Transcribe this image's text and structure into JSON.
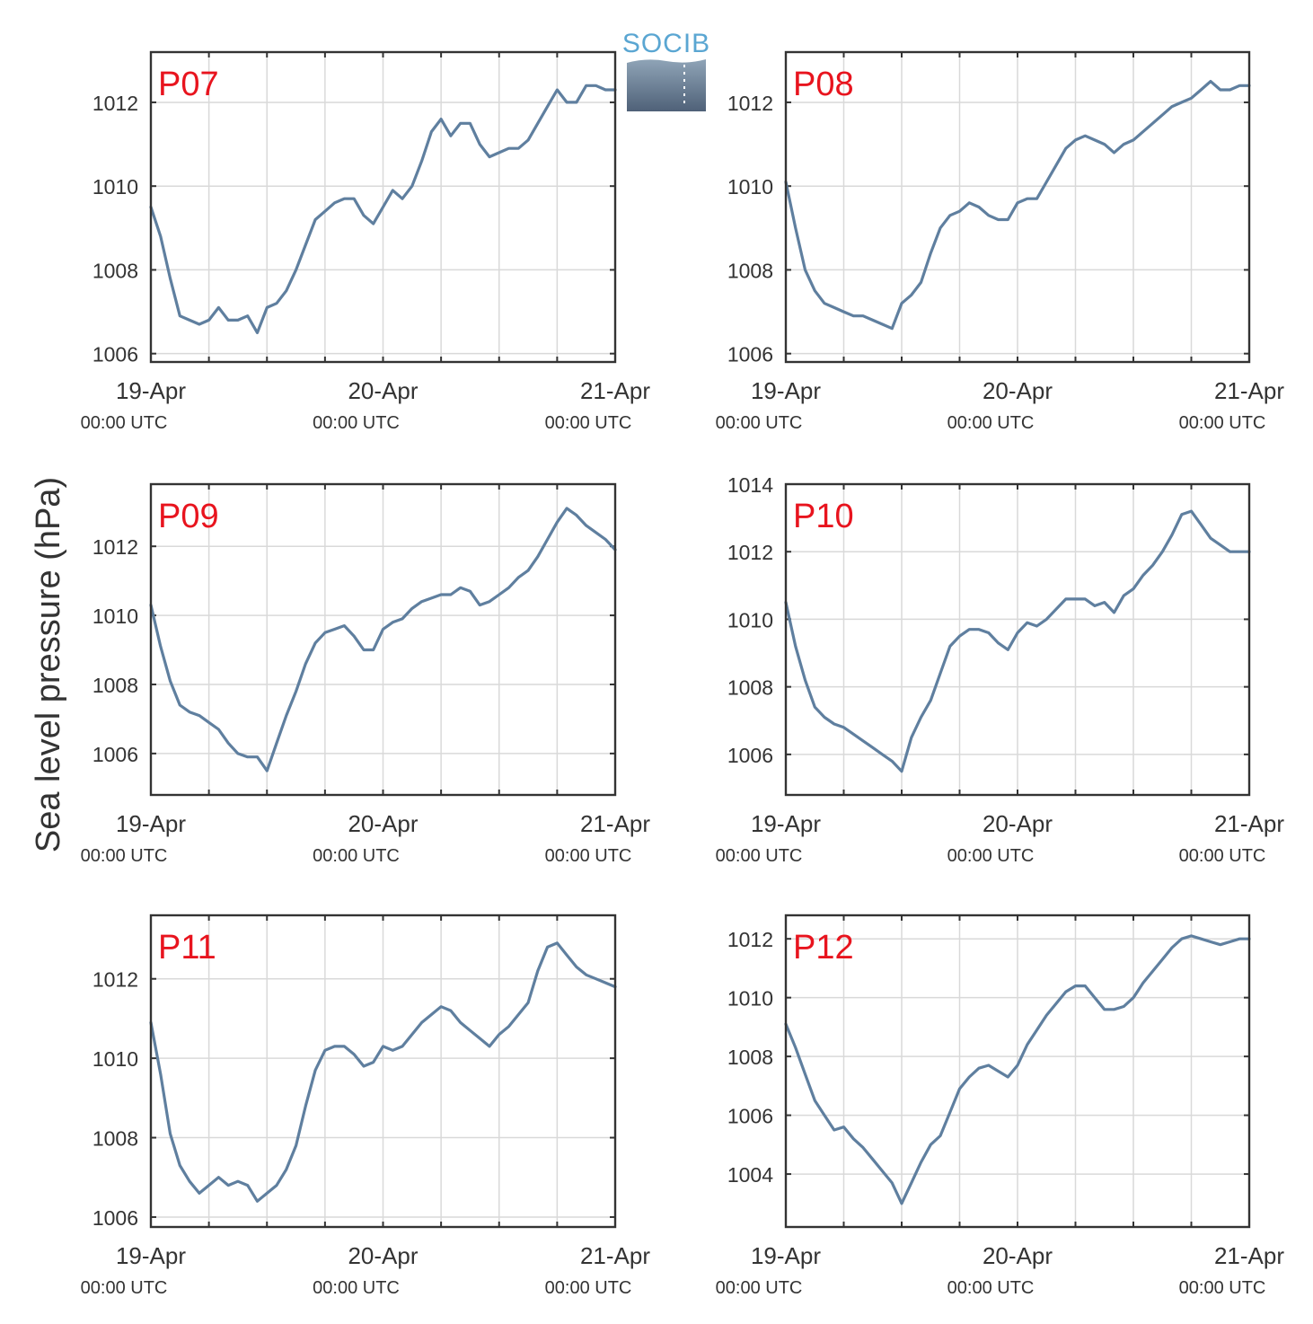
{
  "figure": {
    "ylabel": "Sea level pressure (hPa)",
    "logo": "SOCIB",
    "line_color": "#5f7f9f",
    "label_color": "#e8141e",
    "grid_color": "#d9d9d9",
    "axis_color": "#333333"
  },
  "chart_data": [
    {
      "type": "line",
      "title": "P07",
      "xlim": [
        0,
        48
      ],
      "ylim": [
        1005.8,
        1013.2
      ],
      "yticks": [
        1006,
        1008,
        1010,
        1012
      ],
      "xticks": [
        0,
        24,
        48
      ],
      "xtick_labels": [
        "19-Apr",
        "20-Apr",
        "21-Apr"
      ],
      "xtick_sublabels": [
        "00:00 UTC",
        "00:00 UTC",
        "00:00 UTC"
      ],
      "grid": true,
      "series": [
        {
          "x": [
            0,
            1,
            2,
            3,
            4,
            5,
            6,
            7,
            8,
            9,
            10,
            11,
            12,
            13,
            14,
            15,
            16,
            17,
            18,
            19,
            20,
            21,
            22,
            23,
            24,
            25,
            26,
            27,
            28,
            29,
            30,
            31,
            32,
            33,
            34,
            35,
            36,
            37,
            38,
            39,
            40,
            41,
            42,
            43,
            44,
            45,
            46,
            47,
            48
          ],
          "y": [
            1009.5,
            1008.8,
            1007.8,
            1006.9,
            1006.8,
            1006.7,
            1006.8,
            1007.1,
            1006.8,
            1006.8,
            1006.9,
            1006.5,
            1007.1,
            1007.2,
            1007.5,
            1008.0,
            1008.6,
            1009.2,
            1009.4,
            1009.6,
            1009.7,
            1009.7,
            1009.3,
            1009.1,
            1009.5,
            1009.9,
            1009.7,
            1010.0,
            1010.6,
            1011.3,
            1011.6,
            1011.2,
            1011.5,
            1011.5,
            1011.0,
            1010.7,
            1010.8,
            1010.9,
            1010.9,
            1011.1,
            1011.5,
            1011.9,
            1012.3,
            1012.0,
            1012.0,
            1012.4,
            1012.4,
            1012.3,
            1012.3
          ]
        }
      ]
    },
    {
      "type": "line",
      "title": "P08",
      "xlim": [
        0,
        48
      ],
      "ylim": [
        1005.8,
        1013.2
      ],
      "yticks": [
        1006,
        1008,
        1010,
        1012
      ],
      "xticks": [
        0,
        24,
        48
      ],
      "xtick_labels": [
        "19-Apr",
        "20-Apr",
        "21-Apr"
      ],
      "xtick_sublabels": [
        "00:00 UTC",
        "00:00 UTC",
        "00:00 UTC"
      ],
      "grid": true,
      "series": [
        {
          "x": [
            0,
            1,
            2,
            3,
            4,
            5,
            6,
            7,
            8,
            9,
            10,
            11,
            12,
            13,
            14,
            15,
            16,
            17,
            18,
            19,
            20,
            21,
            22,
            23,
            24,
            25,
            26,
            27,
            28,
            29,
            30,
            31,
            32,
            33,
            34,
            35,
            36,
            37,
            38,
            39,
            40,
            41,
            42,
            43,
            44,
            45,
            46,
            47,
            48
          ],
          "y": [
            1010.1,
            1009.0,
            1008.0,
            1007.5,
            1007.2,
            1007.1,
            1007.0,
            1006.9,
            1006.9,
            1006.8,
            1006.7,
            1006.6,
            1007.2,
            1007.4,
            1007.7,
            1008.4,
            1009.0,
            1009.3,
            1009.4,
            1009.6,
            1009.5,
            1009.3,
            1009.2,
            1009.2,
            1009.6,
            1009.7,
            1009.7,
            1010.1,
            1010.5,
            1010.9,
            1011.1,
            1011.2,
            1011.1,
            1011.0,
            1010.8,
            1011.0,
            1011.1,
            1011.3,
            1011.5,
            1011.7,
            1011.9,
            1012.0,
            1012.1,
            1012.3,
            1012.5,
            1012.3,
            1012.3,
            1012.4,
            1012.4
          ]
        }
      ]
    },
    {
      "type": "line",
      "title": "P09",
      "xlim": [
        0,
        48
      ],
      "ylim": [
        1004.8,
        1013.8
      ],
      "yticks": [
        1006,
        1008,
        1010,
        1012
      ],
      "xticks": [
        0,
        24,
        48
      ],
      "xtick_labels": [
        "19-Apr",
        "20-Apr",
        "21-Apr"
      ],
      "xtick_sublabels": [
        "00:00 UTC",
        "00:00 UTC",
        "00:00 UTC"
      ],
      "grid": true,
      "series": [
        {
          "x": [
            0,
            1,
            2,
            3,
            4,
            5,
            6,
            7,
            8,
            9,
            10,
            11,
            12,
            13,
            14,
            15,
            16,
            17,
            18,
            19,
            20,
            21,
            22,
            23,
            24,
            25,
            26,
            27,
            28,
            29,
            30,
            31,
            32,
            33,
            34,
            35,
            36,
            37,
            38,
            39,
            40,
            41,
            42,
            43,
            44,
            45,
            46,
            47,
            48
          ],
          "y": [
            1010.3,
            1009.1,
            1008.1,
            1007.4,
            1007.2,
            1007.1,
            1006.9,
            1006.7,
            1006.3,
            1006.0,
            1005.9,
            1005.9,
            1005.5,
            1006.3,
            1007.1,
            1007.8,
            1008.6,
            1009.2,
            1009.5,
            1009.6,
            1009.7,
            1009.4,
            1009.0,
            1009.0,
            1009.6,
            1009.8,
            1009.9,
            1010.2,
            1010.4,
            1010.5,
            1010.6,
            1010.6,
            1010.8,
            1010.7,
            1010.3,
            1010.4,
            1010.6,
            1010.8,
            1011.1,
            1011.3,
            1011.7,
            1012.2,
            1012.7,
            1013.1,
            1012.9,
            1012.6,
            1012.4,
            1012.2,
            1011.9
          ]
        }
      ]
    },
    {
      "type": "line",
      "title": "P10",
      "xlim": [
        0,
        48
      ],
      "ylim": [
        1004.8,
        1014
      ],
      "yticks": [
        1006,
        1008,
        1010,
        1012,
        1014
      ],
      "xticks": [
        0,
        24,
        48
      ],
      "xtick_labels": [
        "19-Apr",
        "20-Apr",
        "21-Apr"
      ],
      "xtick_sublabels": [
        "00:00 UTC",
        "00:00 UTC",
        "00:00 UTC"
      ],
      "grid": true,
      "series": [
        {
          "x": [
            0,
            1,
            2,
            3,
            4,
            5,
            6,
            7,
            8,
            9,
            10,
            11,
            12,
            13,
            14,
            15,
            16,
            17,
            18,
            19,
            20,
            21,
            22,
            23,
            24,
            25,
            26,
            27,
            28,
            29,
            30,
            31,
            32,
            33,
            34,
            35,
            36,
            37,
            38,
            39,
            40,
            41,
            42,
            43,
            44,
            45,
            46,
            47,
            48
          ],
          "y": [
            1010.5,
            1009.2,
            1008.2,
            1007.4,
            1007.1,
            1006.9,
            1006.8,
            1006.6,
            1006.4,
            1006.2,
            1006.0,
            1005.8,
            1005.5,
            1006.5,
            1007.1,
            1007.6,
            1008.4,
            1009.2,
            1009.5,
            1009.7,
            1009.7,
            1009.6,
            1009.3,
            1009.1,
            1009.6,
            1009.9,
            1009.8,
            1010.0,
            1010.3,
            1010.6,
            1010.6,
            1010.6,
            1010.4,
            1010.5,
            1010.2,
            1010.7,
            1010.9,
            1011.3,
            1011.6,
            1012.0,
            1012.5,
            1013.1,
            1013.2,
            1012.8,
            1012.4,
            1012.2,
            1012.0,
            1012.0,
            1012.0
          ]
        }
      ]
    },
    {
      "type": "line",
      "title": "P11",
      "xlim": [
        0,
        48
      ],
      "ylim": [
        1005.75,
        1013.6
      ],
      "yticks": [
        1006,
        1008,
        1010,
        1012
      ],
      "xticks": [
        0,
        24,
        48
      ],
      "xtick_labels": [
        "19-Apr",
        "20-Apr",
        "21-Apr"
      ],
      "xtick_sublabels": [
        "00:00 UTC",
        "00:00 UTC",
        "00:00 UTC"
      ],
      "grid": true,
      "series": [
        {
          "x": [
            0,
            1,
            2,
            3,
            4,
            5,
            6,
            7,
            8,
            9,
            10,
            11,
            12,
            13,
            14,
            15,
            16,
            17,
            18,
            19,
            20,
            21,
            22,
            23,
            24,
            25,
            26,
            27,
            28,
            29,
            30,
            31,
            32,
            33,
            34,
            35,
            36,
            37,
            38,
            39,
            40,
            41,
            42,
            43,
            44,
            45,
            46,
            47,
            48
          ],
          "y": [
            1010.9,
            1009.6,
            1008.1,
            1007.3,
            1006.9,
            1006.6,
            1006.8,
            1007.0,
            1006.8,
            1006.9,
            1006.8,
            1006.4,
            1006.6,
            1006.8,
            1007.2,
            1007.8,
            1008.8,
            1009.7,
            1010.2,
            1010.3,
            1010.3,
            1010.1,
            1009.8,
            1009.9,
            1010.3,
            1010.2,
            1010.3,
            1010.6,
            1010.9,
            1011.1,
            1011.3,
            1011.2,
            1010.9,
            1010.7,
            1010.5,
            1010.3,
            1010.6,
            1010.8,
            1011.1,
            1011.4,
            1012.2,
            1012.8,
            1012.9,
            1012.6,
            1012.3,
            1012.1,
            1012.0,
            1011.9,
            1011.8
          ]
        }
      ]
    },
    {
      "type": "line",
      "title": "P12",
      "xlim": [
        0,
        48
      ],
      "ylim": [
        1002.2,
        1012.8
      ],
      "yticks": [
        1004,
        1006,
        1008,
        1010,
        1012
      ],
      "xticks": [
        0,
        24,
        48
      ],
      "xtick_labels": [
        "19-Apr",
        "20-Apr",
        "21-Apr"
      ],
      "xtick_sublabels": [
        "00:00 UTC",
        "00:00 UTC",
        "00:00 UTC"
      ],
      "grid": true,
      "series": [
        {
          "x": [
            0,
            1,
            2,
            3,
            4,
            5,
            6,
            7,
            8,
            9,
            10,
            11,
            12,
            13,
            14,
            15,
            16,
            17,
            18,
            19,
            20,
            21,
            22,
            23,
            24,
            25,
            26,
            27,
            28,
            29,
            30,
            31,
            32,
            33,
            34,
            35,
            36,
            37,
            38,
            39,
            40,
            41,
            42,
            43,
            44,
            45,
            46,
            47,
            48
          ],
          "y": [
            1009.1,
            1008.3,
            1007.4,
            1006.5,
            1006.0,
            1005.5,
            1005.6,
            1005.2,
            1004.9,
            1004.5,
            1004.1,
            1003.7,
            1003.0,
            1003.7,
            1004.4,
            1005.0,
            1005.3,
            1006.1,
            1006.9,
            1007.3,
            1007.6,
            1007.7,
            1007.5,
            1007.3,
            1007.7,
            1008.4,
            1008.9,
            1009.4,
            1009.8,
            1010.2,
            1010.4,
            1010.4,
            1010.0,
            1009.6,
            1009.6,
            1009.7,
            1010.0,
            1010.5,
            1010.9,
            1011.3,
            1011.7,
            1012.0,
            1012.1,
            1012.0,
            1011.9,
            1011.8,
            1011.9,
            1012.0,
            1012.0
          ]
        }
      ]
    }
  ]
}
